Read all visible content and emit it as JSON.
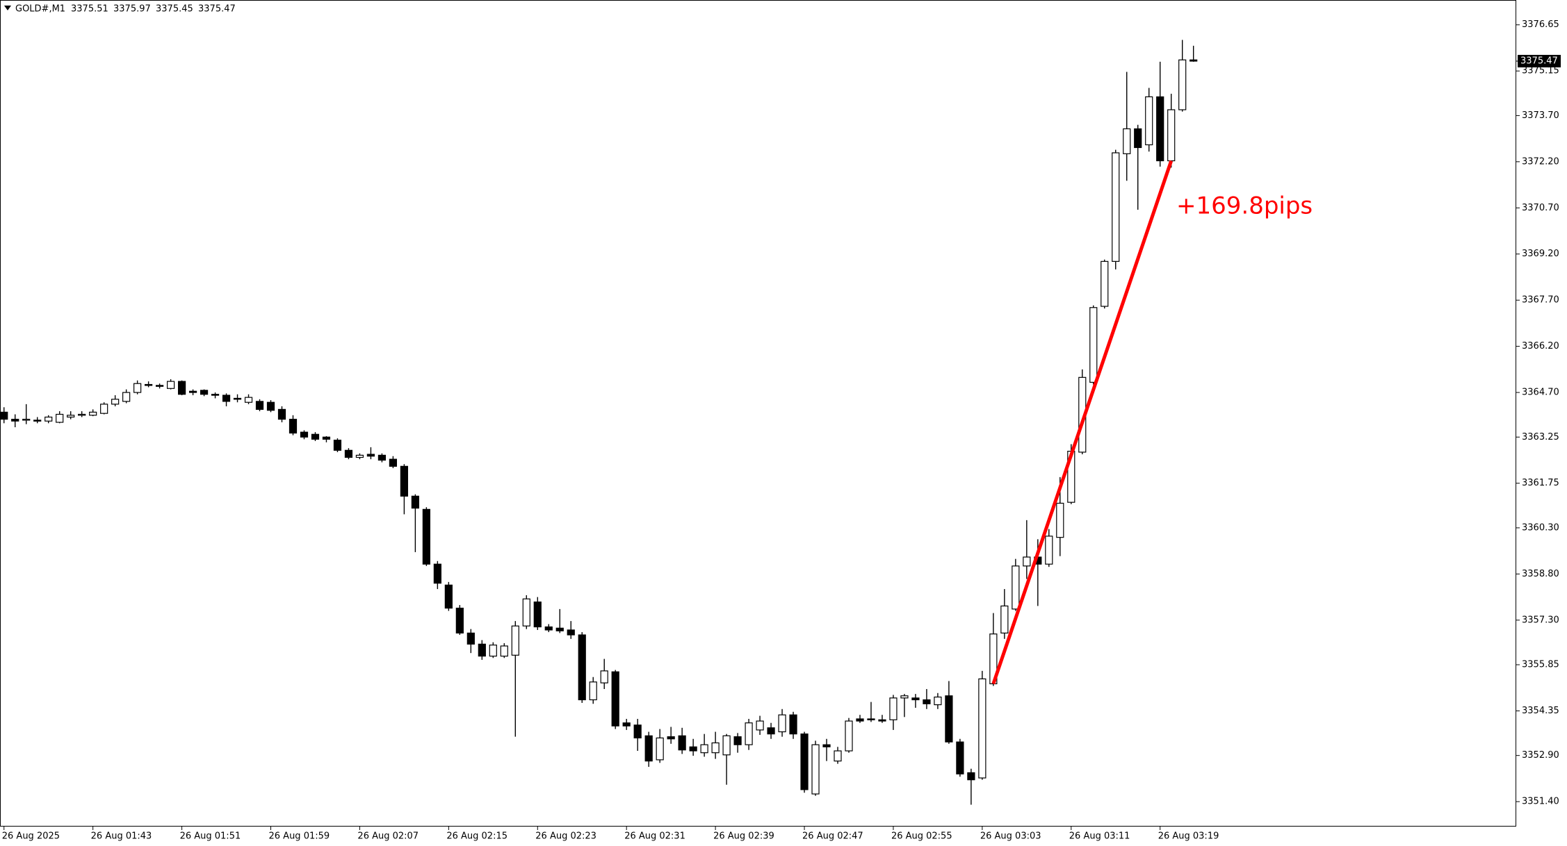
{
  "chart_data": {
    "type": "candlestick",
    "symbol": "GOLD#,M1",
    "categories": [
      "26 Aug 2025",
      null,
      null,
      null,
      null,
      null,
      null,
      null,
      "26 Aug 01:43",
      null,
      null,
      null,
      null,
      null,
      null,
      null,
      "26 Aug 01:51",
      null,
      null,
      null,
      null,
      null,
      null,
      null,
      "26 Aug 01:59",
      null,
      null,
      null,
      null,
      null,
      null,
      null,
      "26 Aug 02:07",
      null,
      null,
      null,
      null,
      null,
      null,
      null,
      "26 Aug 02:15",
      null,
      null,
      null,
      null,
      null,
      null,
      null,
      "26 Aug 02:23",
      null,
      null,
      null,
      null,
      null,
      null,
      null,
      "26 Aug 02:31",
      null,
      null,
      null,
      null,
      null,
      null,
      null,
      "26 Aug 02:39",
      null,
      null,
      null,
      null,
      null,
      null,
      null,
      "26 Aug 02:47",
      null,
      null,
      null,
      null,
      null,
      null,
      null,
      "26 Aug 02:55",
      null,
      null,
      null,
      null,
      null,
      null,
      null,
      "26 Aug 03:03",
      null,
      null,
      null,
      null,
      null,
      null,
      null,
      "26 Aug 03:11",
      null,
      null,
      null,
      null,
      null,
      null,
      null,
      "26 Aug 03:19",
      null,
      null,
      null
    ],
    "open": [
      3364.06,
      3363.83,
      3363.8,
      3363.8,
      3363.77,
      3363.73,
      3363.9,
      3363.96,
      3363.96,
      3364.02,
      3364.32,
      3364.41,
      3364.7,
      3364.96,
      3364.93,
      3364.83,
      3365.06,
      3364.74,
      3364.77,
      3364.64,
      3364.61,
      3364.51,
      3364.38,
      3364.41,
      3364.38,
      3364.15,
      3363.83,
      3363.41,
      3363.34,
      3363.25,
      3363.15,
      3362.82,
      3362.59,
      3362.69,
      3362.66,
      3362.53,
      3362.3,
      3361.33,
      3360.9,
      3359.12,
      3358.44,
      3357.69,
      3356.88,
      3356.52,
      3356.13,
      3356.13,
      3356.16,
      3357.11,
      3357.89,
      3357.08,
      3357.04,
      3356.98,
      3356.82,
      3354.71,
      3355.26,
      3355.62,
      3353.96,
      3353.89,
      3353.54,
      3352.76,
      3353.51,
      3353.54,
      3353.18,
      3352.99,
      3352.99,
      3352.92,
      3353.51,
      3353.25,
      3353.73,
      3353.8,
      3353.67,
      3354.22,
      3353.6,
      3351.65,
      3353.25,
      3352.72,
      3353.05,
      3354.09,
      3354.09,
      3354.06,
      3354.06,
      3354.77,
      3354.77,
      3354.71,
      3354.55,
      3354.84,
      3353.34,
      3352.34,
      3352.17,
      3355.23,
      3356.88,
      3357.66,
      3359.06,
      3359.35,
      3359.12,
      3359.99,
      3361.13,
      3362.76,
      3365.03,
      3367.5,
      3368.96,
      3372.46,
      3373.27,
      3372.75,
      3374.31,
      3372.23,
      3373.89,
      3375.51
    ],
    "high": [
      3364.22,
      3363.99,
      3364.32,
      3363.9,
      3363.96,
      3364.09,
      3364.09,
      3364.09,
      3364.15,
      3364.38,
      3364.61,
      3364.8,
      3365.09,
      3365.06,
      3364.99,
      3365.13,
      3365.09,
      3364.8,
      3364.8,
      3364.7,
      3364.67,
      3364.64,
      3364.64,
      3364.48,
      3364.45,
      3364.25,
      3363.96,
      3363.47,
      3363.41,
      3363.28,
      3363.21,
      3362.89,
      3362.72,
      3362.92,
      3362.72,
      3362.63,
      3362.37,
      3361.39,
      3360.97,
      3359.22,
      3358.54,
      3357.79,
      3357.01,
      3356.65,
      3356.58,
      3356.55,
      3357.27,
      3358.11,
      3358.05,
      3357.17,
      3357.66,
      3357.27,
      3356.91,
      3355.45,
      3356.04,
      3355.68,
      3354.09,
      3354.09,
      3353.67,
      3353.76,
      3353.83,
      3353.8,
      3353.44,
      3353.6,
      3353.67,
      3353.6,
      3353.63,
      3354.09,
      3354.19,
      3353.96,
      3354.41,
      3354.32,
      3353.67,
      3353.38,
      3353.44,
      3353.18,
      3354.12,
      3354.22,
      3354.64,
      3354.22,
      3354.87,
      3354.9,
      3354.9,
      3355.06,
      3354.93,
      3355.32,
      3353.44,
      3352.47,
      3355.65,
      3357.53,
      3358.31,
      3359.29,
      3360.55,
      3359.93,
      3360.26,
      3361.95,
      3363.02,
      3365.45,
      3367.53,
      3369.02,
      3372.59,
      3375.12,
      3373.4,
      3374.6,
      3375.45,
      3374.41,
      3376.16,
      3375.97
    ],
    "low": [
      3363.7,
      3363.57,
      3363.67,
      3363.7,
      3363.7,
      3363.7,
      3363.83,
      3363.9,
      3363.93,
      3363.99,
      3364.25,
      3364.35,
      3364.64,
      3364.87,
      3364.83,
      3364.8,
      3364.61,
      3364.61,
      3364.58,
      3364.51,
      3364.25,
      3364.38,
      3364.32,
      3364.09,
      3364.06,
      3363.73,
      3363.31,
      3363.18,
      3363.12,
      3363.08,
      3362.76,
      3362.53,
      3362.53,
      3362.53,
      3362.43,
      3362.24,
      3360.74,
      3359.51,
      3359.06,
      3358.31,
      3357.6,
      3356.82,
      3356.23,
      3356.01,
      3356.07,
      3356.07,
      3353.51,
      3357.01,
      3356.98,
      3356.91,
      3356.88,
      3356.69,
      3354.61,
      3354.58,
      3355.06,
      3353.76,
      3353.73,
      3353.05,
      3352.53,
      3352.66,
      3353.28,
      3352.95,
      3352.89,
      3352.86,
      3352.79,
      3351.95,
      3352.99,
      3353.08,
      3353.57,
      3353.44,
      3353.51,
      3353.44,
      3351.69,
      3351.59,
      3352.72,
      3352.63,
      3352.99,
      3353.96,
      3353.99,
      3353.96,
      3353.73,
      3354.15,
      3354.45,
      3354.41,
      3354.41,
      3353.28,
      3352.21,
      3351.3,
      3352.11,
      3355.16,
      3356.69,
      3357.6,
      3358.64,
      3357.76,
      3359.03,
      3359.38,
      3361.07,
      3362.69,
      3364.96,
      3367.43,
      3368.7,
      3371.58,
      3370.64,
      3372.53,
      3372.04,
      3372.01,
      3373.83,
      3375.45
    ],
    "close": [
      3363.83,
      3363.77,
      3363.83,
      3363.77,
      3363.9,
      3363.99,
      3363.96,
      3363.99,
      3364.06,
      3364.32,
      3364.48,
      3364.7,
      3364.99,
      3364.93,
      3364.91,
      3365.06,
      3364.64,
      3364.7,
      3364.64,
      3364.61,
      3364.41,
      3364.48,
      3364.54,
      3364.15,
      3364.12,
      3363.83,
      3363.38,
      3363.25,
      3363.18,
      3363.18,
      3362.82,
      3362.59,
      3362.66,
      3362.63,
      3362.5,
      3362.3,
      3361.33,
      3360.94,
      3359.12,
      3358.5,
      3357.69,
      3356.88,
      3356.52,
      3356.13,
      3356.49,
      3356.46,
      3357.11,
      3357.99,
      3357.08,
      3356.98,
      3356.95,
      3356.82,
      3354.71,
      3355.29,
      3355.65,
      3353.86,
      3353.86,
      3353.47,
      3352.72,
      3353.47,
      3353.44,
      3353.08,
      3353.05,
      3353.25,
      3353.31,
      3353.54,
      3353.25,
      3353.96,
      3354.02,
      3353.6,
      3354.22,
      3353.6,
      3351.79,
      3353.25,
      3353.18,
      3353.05,
      3354.02,
      3354.02,
      3354.06,
      3354.02,
      3354.77,
      3354.84,
      3354.71,
      3354.58,
      3354.8,
      3353.34,
      3352.3,
      3352.11,
      3355.39,
      3356.85,
      3357.76,
      3359.06,
      3359.35,
      3359.12,
      3360.03,
      3361.1,
      3362.79,
      3365.19,
      3367.46,
      3368.96,
      3372.49,
      3373.27,
      3372.66,
      3374.31,
      3372.23,
      3373.89,
      3375.51,
      3375.47
    ],
    "ylim": [
      3350.59,
      3377.36
    ],
    "yticks": [
      {
        "value": 3351.4,
        "label": "3351.40"
      },
      {
        "value": 3352.9,
        "label": "3352.90"
      },
      3354.35,
      3355.85,
      {
        "value": 3357.3,
        "label": "3357.30"
      },
      {
        "value": 3358.8,
        "label": "3358.80"
      },
      {
        "value": 3360.3,
        "label": "3360.30"
      },
      3361.75,
      3363.25,
      {
        "value": 3364.7,
        "label": "3364.70"
      },
      {
        "value": 3366.2,
        "label": "3366.20"
      },
      {
        "value": 3367.7,
        "label": "3367.70"
      },
      {
        "value": 3369.2,
        "label": "3369.20"
      },
      {
        "value": 3370.7,
        "label": "3370.70"
      },
      {
        "value": 3372.2,
        "label": "3372.20"
      },
      {
        "value": 3373.7,
        "label": "3373.70"
      },
      3375.15,
      3376.65
    ],
    "annotation": "+169.8pips",
    "annotation_color": "#ff0000",
    "up_color": "#ffffff",
    "down_color": "#000000",
    "wick_color": "#000000"
  }
}
